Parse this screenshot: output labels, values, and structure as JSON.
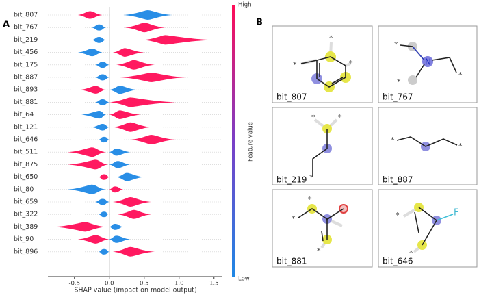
{
  "panel_a": "A",
  "panel_b": "B",
  "chart_data": {
    "type": "beeswarm",
    "xlabel": "SHAP value (impact on model output)",
    "colorbar_label": "Feature value",
    "colorbar_high": "High",
    "colorbar_low": "Low",
    "low_color": "#1e88e5",
    "high_color": "#ff0d57",
    "categories": [
      "bit_807",
      "bit_767",
      "bit_219",
      "bit_456",
      "bit_175",
      "bit_887",
      "bit_893",
      "bit_881",
      "bit_64",
      "bit_121",
      "bit_646",
      "bit_511",
      "bit_875",
      "bit_650",
      "bit_80",
      "bit_659",
      "bit_322",
      "bit_389",
      "bit_90",
      "bit_896"
    ],
    "low_ranges": [
      [
        0.2,
        0.55,
        0.9
      ],
      [
        -0.25,
        -0.15,
        -0.05
      ],
      [
        -0.25,
        -0.15,
        -0.05
      ],
      [
        -0.45,
        -0.25,
        -0.1
      ],
      [
        -0.2,
        -0.1,
        0.0
      ],
      [
        -0.2,
        -0.1,
        0.0
      ],
      [
        0.0,
        0.15,
        0.4
      ],
      [
        -0.2,
        -0.1,
        0.0
      ],
      [
        -0.4,
        -0.15,
        -0.05
      ],
      [
        -0.25,
        -0.1,
        0.0
      ],
      [
        -0.15,
        -0.08,
        0.0
      ],
      [
        0.0,
        0.1,
        0.3
      ],
      [
        0.0,
        0.12,
        0.3
      ],
      [
        0.1,
        0.25,
        0.5
      ],
      [
        -0.6,
        -0.25,
        -0.05
      ],
      [
        -0.2,
        -0.1,
        0.0
      ],
      [
        -0.15,
        -0.08,
        -0.02
      ],
      [
        0.0,
        0.08,
        0.2
      ],
      [
        0.0,
        0.1,
        0.3
      ],
      [
        -0.15,
        -0.08,
        0.0
      ]
    ],
    "high_ranges": [
      [
        -0.45,
        -0.28,
        -0.1
      ],
      [
        0.22,
        0.5,
        0.8
      ],
      [
        0.48,
        0.8,
        1.5
      ],
      [
        0.05,
        0.22,
        0.5
      ],
      [
        0.1,
        0.35,
        0.65
      ],
      [
        0.15,
        0.6,
        1.1
      ],
      [
        -0.42,
        -0.2,
        -0.05
      ],
      [
        0.0,
        0.3,
        0.95
      ],
      [
        0.0,
        0.15,
        0.45
      ],
      [
        0.05,
        0.3,
        0.6
      ],
      [
        0.3,
        0.6,
        0.95
      ],
      [
        -0.6,
        -0.25,
        -0.05
      ],
      [
        -0.6,
        -0.2,
        -0.02
      ],
      [
        -0.15,
        -0.08,
        0.0
      ],
      [
        0.0,
        0.08,
        0.2
      ],
      [
        0.05,
        0.3,
        0.6
      ],
      [
        0.12,
        0.35,
        0.6
      ],
      [
        -0.8,
        -0.35,
        -0.05
      ],
      [
        -0.45,
        -0.2,
        0.0
      ],
      [
        0.05,
        0.3,
        0.65
      ]
    ],
    "xlim": [
      -0.88,
      1.62
    ],
    "xticks": [
      -0.5,
      {
        "value": 0,
        "label": "0.0"
      },
      0.5,
      {
        "value": 1,
        "label": "1.0"
      },
      1.5
    ]
  },
  "dummy_atom": "*",
  "fragments": [
    {
      "label": "bit_807"
    },
    {
      "label": "bit_767",
      "atom": "N"
    },
    {
      "label": "bit_219"
    },
    {
      "label": "bit_887"
    },
    {
      "label": "bit_881"
    },
    {
      "label": "bit_646",
      "atom": "F"
    }
  ]
}
